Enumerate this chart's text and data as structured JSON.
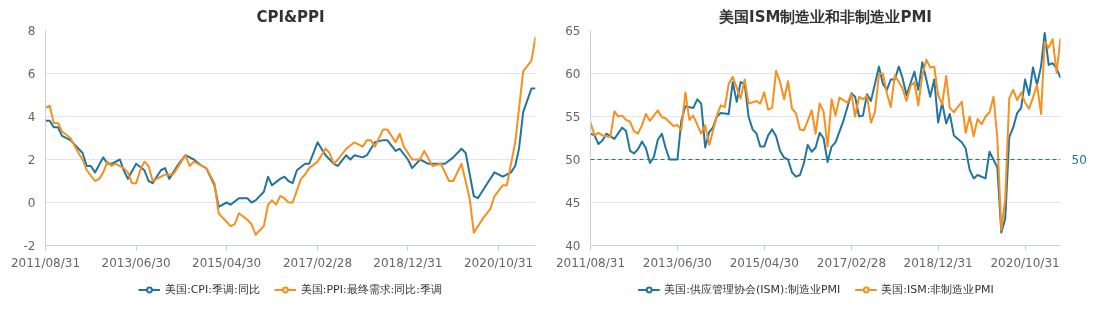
{
  "chart_data": [
    {
      "type": "line",
      "title": "CPI&PPI",
      "xlim": [
        "2011-08",
        "2021-07"
      ],
      "ylim": [
        -2,
        8
      ],
      "yticks": [
        -2,
        0,
        2,
        4,
        6,
        8
      ],
      "xticks": [
        {
          "value": "2011-08",
          "label": "2011/08/31"
        },
        {
          "value": "2013-06",
          "label": "2013/06/30"
        },
        {
          "value": "2015-04",
          "label": "2015/04/30"
        },
        {
          "value": "2017-02",
          "label": "2017/02/28"
        },
        {
          "value": "2018-12",
          "label": "2018/12/31"
        },
        {
          "value": "2020-10",
          "label": "2020/10/31"
        }
      ],
      "grid": "y",
      "legend": "bottom",
      "line_style": "solid",
      "series": [
        {
          "name": "美国:CPI:季调:同比",
          "color": "#21759f",
          "x": [
            "2011-08",
            "2011-09",
            "2011-10",
            "2011-11",
            "2011-12",
            "2012-02",
            "2012-04",
            "2012-05",
            "2012-06",
            "2012-07",
            "2012-08",
            "2012-10",
            "2012-11",
            "2012-12",
            "2013-02",
            "2013-03",
            "2013-04",
            "2013-06",
            "2013-08",
            "2013-09",
            "2013-10",
            "2013-12",
            "2014-01",
            "2014-02",
            "2014-04",
            "2014-06",
            "2014-08",
            "2014-10",
            "2014-11",
            "2015-01",
            "2015-02",
            "2015-04",
            "2015-05",
            "2015-07",
            "2015-09",
            "2015-10",
            "2015-11",
            "2016-01",
            "2016-02",
            "2016-03",
            "2016-05",
            "2016-06",
            "2016-07",
            "2016-08",
            "2016-09",
            "2016-11",
            "2016-12",
            "2017-02",
            "2017-04",
            "2017-06",
            "2017-07",
            "2017-09",
            "2017-10",
            "2017-11",
            "2018-01",
            "2018-02",
            "2018-04",
            "2018-06",
            "2018-07",
            "2018-09",
            "2018-10",
            "2018-12",
            "2019-01",
            "2019-03",
            "2019-05",
            "2019-07",
            "2019-09",
            "2019-11",
            "2020-01",
            "2020-02",
            "2020-04",
            "2020-05",
            "2020-07",
            "2020-09",
            "2020-11",
            "2021-01",
            "2021-02",
            "2021-03",
            "2021-04",
            "2021-06",
            "2021-07"
          ],
          "values": [
            3.8,
            3.8,
            3.5,
            3.5,
            3.1,
            2.9,
            2.5,
            2.3,
            1.7,
            1.7,
            1.4,
            2.1,
            1.8,
            1.8,
            2.0,
            1.5,
            1.1,
            1.8,
            1.5,
            1.0,
            0.9,
            1.5,
            1.6,
            1.1,
            1.7,
            2.2,
            2.0,
            1.7,
            1.6,
            0.8,
            -0.2,
            0.0,
            -0.1,
            0.2,
            0.2,
            0.0,
            0.1,
            0.5,
            1.2,
            0.8,
            1.1,
            1.2,
            1.0,
            0.9,
            1.5,
            1.8,
            1.8,
            2.8,
            2.2,
            1.8,
            1.7,
            2.2,
            2.0,
            2.2,
            2.1,
            2.2,
            2.8,
            2.9,
            2.9,
            2.4,
            2.5,
            2.0,
            1.6,
            2.0,
            1.8,
            1.8,
            1.8,
            2.1,
            2.5,
            2.3,
            0.3,
            0.2,
            0.8,
            1.4,
            1.2,
            1.4,
            1.7,
            2.5,
            4.2,
            5.3,
            5.3
          ]
        },
        {
          "name": "美国:PPI:最终需求:同比:季调",
          "color": "#f7901e",
          "x": [
            "2011-08",
            "2011-09",
            "2011-10",
            "2011-11",
            "2011-12",
            "2012-02",
            "2012-04",
            "2012-05",
            "2012-06",
            "2012-08",
            "2012-09",
            "2012-10",
            "2012-11",
            "2012-12",
            "2013-01",
            "2013-03",
            "2013-04",
            "2013-05",
            "2013-06",
            "2013-07",
            "2013-08",
            "2013-09",
            "2013-10",
            "2013-12",
            "2014-01",
            "2014-03",
            "2014-04",
            "2014-06",
            "2014-07",
            "2014-08",
            "2014-10",
            "2014-11",
            "2015-01",
            "2015-02",
            "2015-03",
            "2015-05",
            "2015-06",
            "2015-07",
            "2015-09",
            "2015-10",
            "2015-11",
            "2016-01",
            "2016-02",
            "2016-03",
            "2016-04",
            "2016-05",
            "2016-06",
            "2016-07",
            "2016-08",
            "2016-10",
            "2016-11",
            "2016-12",
            "2017-02",
            "2017-04",
            "2017-05",
            "2017-06",
            "2017-07",
            "2017-09",
            "2017-11",
            "2018-01",
            "2018-02",
            "2018-03",
            "2018-04",
            "2018-06",
            "2018-07",
            "2018-09",
            "2018-10",
            "2018-11",
            "2019-01",
            "2019-03",
            "2019-04",
            "2019-06",
            "2019-08",
            "2019-10",
            "2019-11",
            "2020-01",
            "2020-03",
            "2020-04",
            "2020-06",
            "2020-08",
            "2020-09",
            "2020-11",
            "2020-12",
            "2021-02",
            "2021-04",
            "2021-06",
            "2021-07"
          ],
          "values": [
            4.4,
            4.5,
            3.7,
            3.7,
            3.3,
            3.0,
            2.3,
            2.0,
            1.5,
            1.0,
            1.1,
            1.4,
            1.9,
            1.7,
            1.8,
            1.6,
            1.4,
            0.9,
            0.9,
            1.5,
            1.9,
            1.7,
            1.0,
            1.2,
            1.3,
            1.3,
            1.6,
            2.2,
            1.7,
            1.9,
            1.7,
            1.6,
            0.9,
            -0.5,
            -0.7,
            -1.1,
            -1.0,
            -0.5,
            -0.8,
            -1.0,
            -1.5,
            -1.1,
            -0.1,
            0.1,
            -0.1,
            0.3,
            0.2,
            0.0,
            0.0,
            1.1,
            1.3,
            1.6,
            1.9,
            2.5,
            2.3,
            1.8,
            2.0,
            2.5,
            2.8,
            2.6,
            2.9,
            2.9,
            2.6,
            3.4,
            3.4,
            2.8,
            3.2,
            2.6,
            2.0,
            2.0,
            2.4,
            1.7,
            1.8,
            1.0,
            1.0,
            1.8,
            0.2,
            -1.4,
            -0.8,
            -0.3,
            0.3,
            0.8,
            0.8,
            2.8,
            6.1,
            6.6,
            7.7
          ]
        }
      ]
    },
    {
      "type": "line",
      "title": "美国ISM制造业和非制造业PMI",
      "xlim": [
        "2011-08",
        "2021-07"
      ],
      "ylim": [
        40,
        65
      ],
      "yticks": [
        40,
        45,
        50,
        55,
        60,
        65
      ],
      "xticks": [
        {
          "value": "2011-08",
          "label": "2011/08/31"
        },
        {
          "value": "2013-06",
          "label": "2013/06/30"
        },
        {
          "value": "2015-04",
          "label": "2015/04/30"
        },
        {
          "value": "2017-02",
          "label": "2017/02/28"
        },
        {
          "value": "2018-12",
          "label": "2018/12/31"
        },
        {
          "value": "2020-10",
          "label": "2020/10/31"
        }
      ],
      "grid": "y",
      "legend": "bottom",
      "line_style": "solid",
      "ref_lines": [
        {
          "axis": "y",
          "value": 50,
          "label": "50",
          "color": "#21759f",
          "line_style": "dashed"
        }
      ],
      "series": [
        {
          "name": "美国:供应管理协会(ISM):制造业PMI",
          "color": "#21759f",
          "x": [
            "2011-08",
            "2011-09",
            "2011-10",
            "2011-11",
            "2011-12",
            "2012-02",
            "2012-04",
            "2012-05",
            "2012-06",
            "2012-07",
            "2012-08",
            "2012-09",
            "2012-10",
            "2012-11",
            "2012-12",
            "2013-01",
            "2013-02",
            "2013-03",
            "2013-04",
            "2013-06",
            "2013-07",
            "2013-08",
            "2013-10",
            "2013-11",
            "2013-12",
            "2014-01",
            "2014-02",
            "2014-03",
            "2014-04",
            "2014-05",
            "2014-07",
            "2014-08",
            "2014-09",
            "2014-10",
            "2014-11",
            "2014-12",
            "2015-01",
            "2015-02",
            "2015-03",
            "2015-04",
            "2015-05",
            "2015-06",
            "2015-07",
            "2015-08",
            "2015-09",
            "2015-10",
            "2015-11",
            "2015-12",
            "2016-01",
            "2016-02",
            "2016-03",
            "2016-04",
            "2016-05",
            "2016-06",
            "2016-07",
            "2016-08",
            "2016-09",
            "2016-10",
            "2016-12",
            "2017-02",
            "2017-03",
            "2017-04",
            "2017-05",
            "2017-06",
            "2017-07",
            "2017-09",
            "2017-10",
            "2017-11",
            "2017-12",
            "2018-01",
            "2018-02",
            "2018-03",
            "2018-04",
            "2018-06",
            "2018-07",
            "2018-08",
            "2018-09",
            "2018-10",
            "2018-11",
            "2018-12",
            "2019-01",
            "2019-02",
            "2019-03",
            "2019-04",
            "2019-06",
            "2019-07",
            "2019-08",
            "2019-09",
            "2019-10",
            "2019-12",
            "2020-01",
            "2020-03",
            "2020-04",
            "2020-05",
            "2020-06",
            "2020-07",
            "2020-08",
            "2020-09",
            "2020-10",
            "2020-11",
            "2020-12",
            "2021-01",
            "2021-02",
            "2021-03",
            "2021-04",
            "2021-05",
            "2021-06",
            "2021-07"
          ],
          "values": [
            53.0,
            52.8,
            51.8,
            52.2,
            53.0,
            52.4,
            53.7,
            53.3,
            51.0,
            50.7,
            51.2,
            52.1,
            51.3,
            49.6,
            50.3,
            52.3,
            53.0,
            51.4,
            50.0,
            50.0,
            54.5,
            56.2,
            56.0,
            57.0,
            56.5,
            51.4,
            53.2,
            53.7,
            55.0,
            55.4,
            55.3,
            59.0,
            56.7,
            59.0,
            58.8,
            55.0,
            53.5,
            53.0,
            51.5,
            51.5,
            52.8,
            53.5,
            52.7,
            51.0,
            50.2,
            50.0,
            48.5,
            48.0,
            48.2,
            49.6,
            51.7,
            50.9,
            51.4,
            53.1,
            52.5,
            49.7,
            51.5,
            52.0,
            54.5,
            57.7,
            57.3,
            55.0,
            55.1,
            57.6,
            56.8,
            60.8,
            58.8,
            58.1,
            59.3,
            59.3,
            60.8,
            59.5,
            57.5,
            60.2,
            58.1,
            61.3,
            59.3,
            57.3,
            59.3,
            54.3,
            56.6,
            54.2,
            55.3,
            52.8,
            52.0,
            51.3,
            48.8,
            47.8,
            48.2,
            47.8,
            50.9,
            49.1,
            41.5,
            43.1,
            52.6,
            53.7,
            55.4,
            56.0,
            59.3,
            57.5,
            60.7,
            58.7,
            60.8,
            64.7,
            61.0,
            61.2,
            60.6,
            59.5
          ]
        },
        {
          "name": "美国:ISM:非制造业PMI",
          "color": "#f7901e",
          "x": [
            "2011-08",
            "2011-09",
            "2011-10",
            "2011-11",
            "2012-01",
            "2012-02",
            "2012-03",
            "2012-04",
            "2012-05",
            "2012-06",
            "2012-07",
            "2012-08",
            "2012-09",
            "2012-10",
            "2012-11",
            "2013-01",
            "2013-02",
            "2013-03",
            "2013-05",
            "2013-06",
            "2013-07",
            "2013-08",
            "2013-09",
            "2013-10",
            "2013-12",
            "2014-01",
            "2014-02",
            "2014-04",
            "2014-05",
            "2014-06",
            "2014-07",
            "2014-08",
            "2014-10",
            "2014-11",
            "2014-12",
            "2015-02",
            "2015-03",
            "2015-04",
            "2015-05",
            "2015-06",
            "2015-07",
            "2015-08",
            "2015-09",
            "2015-10",
            "2015-11",
            "2015-12",
            "2016-01",
            "2016-02",
            "2016-04",
            "2016-05",
            "2016-06",
            "2016-07",
            "2016-08",
            "2016-09",
            "2016-10",
            "2016-11",
            "2017-01",
            "2017-02",
            "2017-03",
            "2017-04",
            "2017-05",
            "2017-06",
            "2017-07",
            "2017-08",
            "2017-09",
            "2017-10",
            "2017-11",
            "2017-12",
            "2018-01",
            "2018-02",
            "2018-03",
            "2018-04",
            "2018-05",
            "2018-06",
            "2018-07",
            "2018-08",
            "2018-09",
            "2018-10",
            "2018-11",
            "2018-12",
            "2019-01",
            "2019-02",
            "2019-03",
            "2019-04",
            "2019-06",
            "2019-07",
            "2019-08",
            "2019-09",
            "2019-10",
            "2019-11",
            "2019-12",
            "2020-01",
            "2020-02",
            "2020-03",
            "2020-04",
            "2020-05",
            "2020-06",
            "2020-07",
            "2020-08",
            "2020-09",
            "2020-10",
            "2020-11",
            "2020-12",
            "2021-01",
            "2021-02",
            "2021-03",
            "2021-04",
            "2021-05",
            "2021-06",
            "2021-07"
          ],
          "values": [
            54.3,
            52.8,
            53.1,
            52.8,
            52.6,
            55.6,
            55.0,
            55.1,
            54.6,
            54.4,
            53.3,
            53.0,
            54.0,
            55.3,
            54.5,
            55.7,
            54.9,
            54.8,
            53.9,
            54.0,
            53.4,
            57.8,
            54.6,
            55.1,
            53.0,
            54.0,
            51.7,
            55.1,
            56.3,
            56.1,
            58.8,
            59.6,
            57.1,
            59.3,
            56.5,
            56.8,
            56.5,
            57.8,
            55.8,
            56.0,
            60.3,
            59.0,
            57.0,
            59.1,
            55.9,
            55.4,
            53.5,
            53.4,
            55.7,
            53.0,
            56.5,
            55.6,
            51.5,
            57.0,
            55.1,
            57.2,
            56.6,
            57.6,
            55.0,
            57.3,
            57.0,
            57.4,
            54.3,
            55.5,
            59.9,
            60.0,
            57.7,
            56.1,
            59.8,
            59.0,
            58.3,
            56.8,
            58.5,
            59.0,
            56.3,
            59.8,
            61.6,
            60.7,
            60.8,
            57.5,
            56.4,
            59.7,
            56.0,
            55.5,
            56.7,
            53.1,
            55.0,
            52.7,
            54.7,
            54.1,
            55.0,
            55.5,
            57.3,
            52.5,
            41.8,
            45.4,
            57.1,
            58.1,
            56.9,
            57.8,
            56.6,
            55.9,
            57.2,
            58.7,
            55.3,
            63.7,
            63.0,
            64.0,
            60.1,
            64.1
          ]
        }
      ]
    }
  ]
}
